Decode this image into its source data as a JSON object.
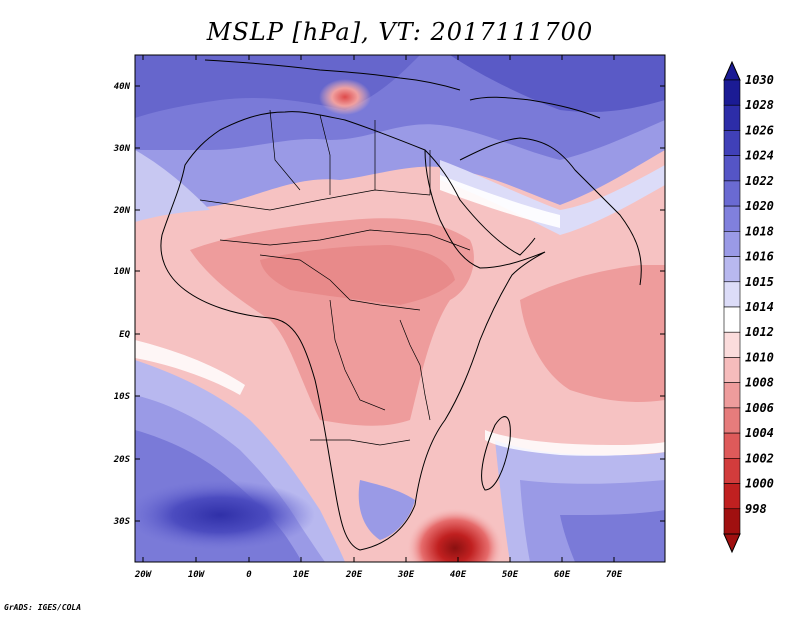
{
  "map": {
    "title": "MSLP [hPa], VT: 2017111700",
    "credit": "GrADS: IGES/COLA",
    "lon_labels": [
      "20W",
      "10W",
      "0",
      "10E",
      "20E",
      "30E",
      "40E",
      "50E",
      "60E",
      "70E"
    ],
    "lat_labels": [
      "40N",
      "30N",
      "20N",
      "10N",
      "EQ",
      "10S",
      "20S",
      "30S"
    ]
  },
  "colorbar": {
    "levels": [
      "1030",
      "1028",
      "1026",
      "1024",
      "1022",
      "1020",
      "1018",
      "1016",
      "1015",
      "1014",
      "1012",
      "1010",
      "1008",
      "1006",
      "1004",
      "1002",
      "1000",
      "998"
    ],
    "colors": [
      "#1b1b94",
      "#2d2da8",
      "#4040b8",
      "#5555c6",
      "#6a6ad2",
      "#8080dd",
      "#9a9ae6",
      "#b8b8ef",
      "#dcdcf8",
      "#ffffff",
      "#fbdcdc",
      "#f6bcbc",
      "#ee9c9c",
      "#e67c7c",
      "#de5a5a",
      "#d23c3c",
      "#c02020",
      "#a01010"
    ]
  }
}
